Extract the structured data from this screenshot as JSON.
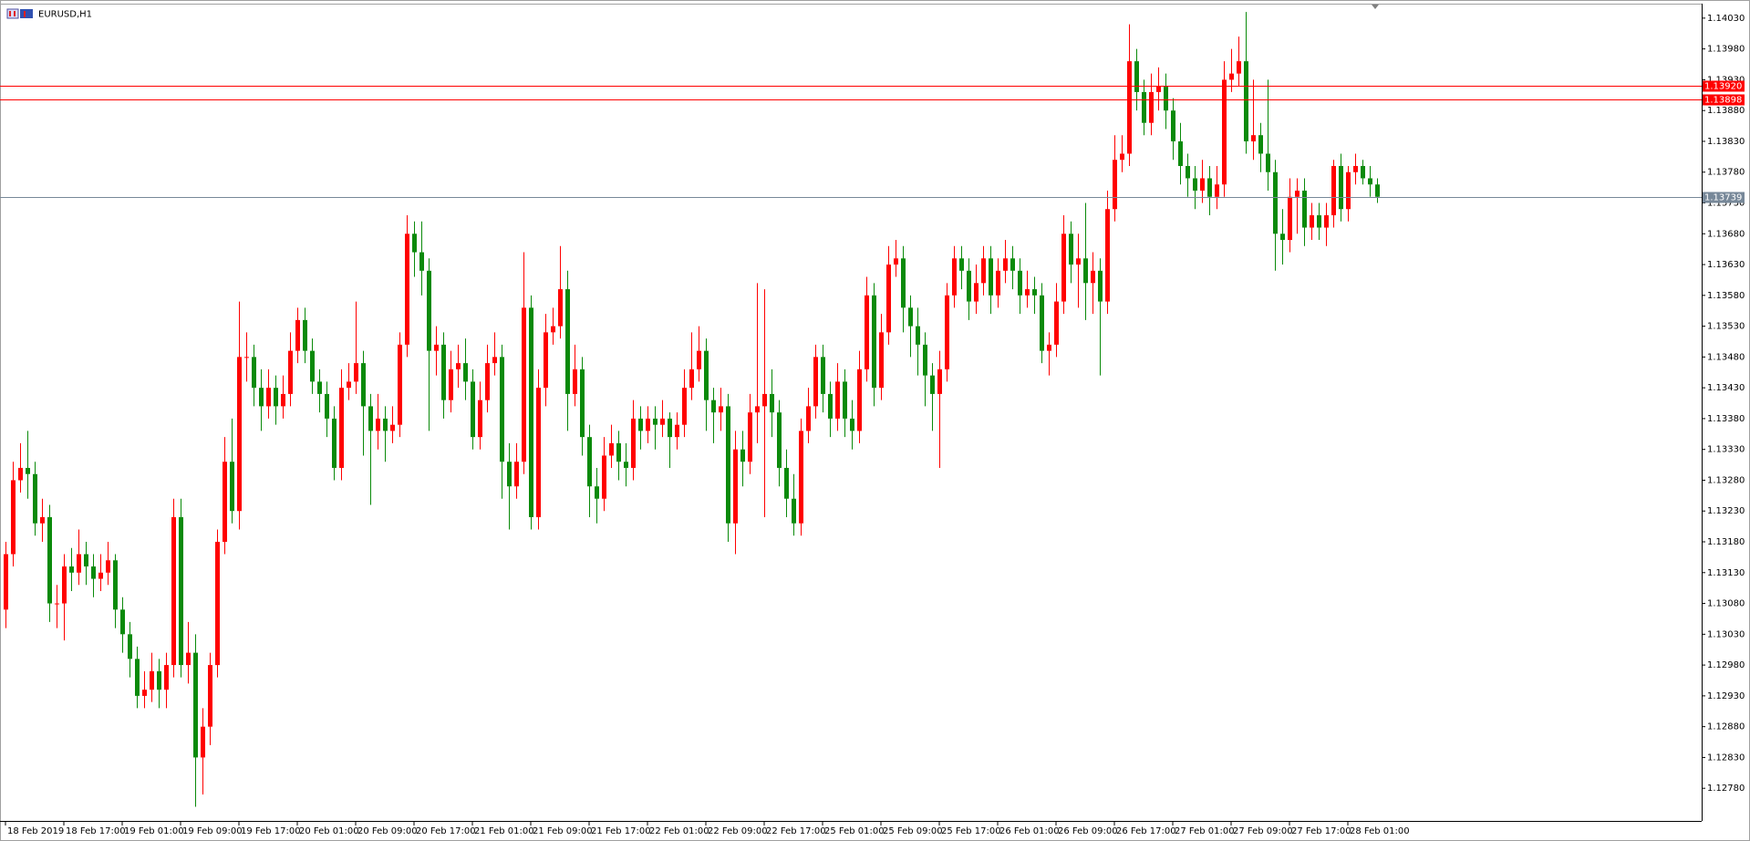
{
  "chart_data": {
    "type": "candlestick",
    "title": "EURUSD,H1",
    "up_color": "#ff0000",
    "down_color": "#0a8a0a",
    "ylim": [
      1.12727,
      1.14052
    ],
    "yticks": [
      {
        "value": 1.1278,
        "label": "1.12780"
      },
      {
        "value": 1.1283,
        "label": "1.12830"
      },
      {
        "value": 1.1288,
        "label": "1.12880"
      },
      {
        "value": 1.1293,
        "label": "1.12930"
      },
      {
        "value": 1.1298,
        "label": "1.12980"
      },
      {
        "value": 1.1303,
        "label": "1.13030"
      },
      {
        "value": 1.1308,
        "label": "1.13080"
      },
      {
        "value": 1.1313,
        "label": "1.13130"
      },
      {
        "value": 1.1318,
        "label": "1.13180"
      },
      {
        "value": 1.1323,
        "label": "1.13230"
      },
      {
        "value": 1.1328,
        "label": "1.13280"
      },
      {
        "value": 1.1333,
        "label": "1.13330"
      },
      {
        "value": 1.1338,
        "label": "1.13380"
      },
      {
        "value": 1.1343,
        "label": "1.13430"
      },
      {
        "value": 1.1348,
        "label": "1.13480"
      },
      {
        "value": 1.1353,
        "label": "1.13530"
      },
      {
        "value": 1.1358,
        "label": "1.13580"
      },
      {
        "value": 1.1363,
        "label": "1.13630"
      },
      {
        "value": 1.1368,
        "label": "1.13680"
      },
      {
        "value": 1.1373,
        "label": "1.13730"
      },
      {
        "value": 1.1378,
        "label": "1.13780"
      },
      {
        "value": 1.1383,
        "label": "1.13830"
      },
      {
        "value": 1.1388,
        "label": "1.13880"
      },
      {
        "value": 1.1393,
        "label": "1.13930"
      },
      {
        "value": 1.1398,
        "label": "1.13980"
      },
      {
        "value": 1.1403,
        "label": "1.14030"
      }
    ],
    "hlines": [
      {
        "value": 1.1392,
        "label": "1.13920",
        "color": "#ff0000"
      },
      {
        "value": 1.13898,
        "label": "1.13898",
        "color": "#ff0000"
      }
    ],
    "bid": {
      "value": 1.13739,
      "label": "1.13739",
      "color": "#778899"
    },
    "categories": [
      "18 Feb 2019",
      null,
      null,
      null,
      null,
      null,
      null,
      null,
      "18 Feb 17:00",
      null,
      null,
      null,
      null,
      null,
      null,
      null,
      "19 Feb 01:00",
      null,
      null,
      null,
      null,
      null,
      null,
      null,
      "19 Feb 09:00",
      null,
      null,
      null,
      null,
      null,
      null,
      null,
      "19 Feb 17:00",
      null,
      null,
      null,
      null,
      null,
      null,
      null,
      "20 Feb 01:00",
      null,
      null,
      null,
      null,
      null,
      null,
      null,
      "20 Feb 09:00",
      null,
      null,
      null,
      null,
      null,
      null,
      null,
      "20 Feb 17:00",
      null,
      null,
      null,
      null,
      null,
      null,
      null,
      "21 Feb 01:00",
      null,
      null,
      null,
      null,
      null,
      null,
      null,
      "21 Feb 09:00",
      null,
      null,
      null,
      null,
      null,
      null,
      null,
      "21 Feb 17:00",
      null,
      null,
      null,
      null,
      null,
      null,
      null,
      "22 Feb 01:00",
      null,
      null,
      null,
      null,
      null,
      null,
      null,
      "22 Feb 09:00",
      null,
      null,
      null,
      null,
      null,
      null,
      null,
      "22 Feb 17:00",
      null,
      null,
      null,
      null,
      null,
      null,
      null,
      "25 Feb 01:00",
      null,
      null,
      null,
      null,
      null,
      null,
      null,
      "25 Feb 09:00",
      null,
      null,
      null,
      null,
      null,
      null,
      null,
      "25 Feb 17:00",
      null,
      null,
      null,
      null,
      null,
      null,
      null,
      "26 Feb 01:00",
      null,
      null,
      null,
      null,
      null,
      null,
      null,
      "26 Feb 09:00",
      null,
      null,
      null,
      null,
      null,
      null,
      null,
      "26 Feb 17:00",
      null,
      null,
      null,
      null,
      null,
      null,
      null,
      "27 Feb 01:00",
      null,
      null,
      null,
      null,
      null,
      null,
      null,
      "27 Feb 09:00",
      null,
      null,
      null,
      null,
      null,
      null,
      null,
      "27 Feb 17:00",
      null,
      null,
      null,
      null,
      null,
      null,
      null,
      "28 Feb 01:00",
      null,
      null,
      null,
      null
    ],
    "ohlc": [
      [
        1.1307,
        1.1318,
        1.1304,
        1.1316
      ],
      [
        1.1316,
        1.1331,
        1.1314,
        1.1328
      ],
      [
        1.1328,
        1.1334,
        1.1326,
        1.133
      ],
      [
        1.133,
        1.1336,
        1.1325,
        1.1329
      ],
      [
        1.1329,
        1.1331,
        1.1319,
        1.1321
      ],
      [
        1.1321,
        1.1325,
        1.1318,
        1.1322
      ],
      [
        1.1322,
        1.1324,
        1.1305,
        1.1308
      ],
      [
        1.1308,
        1.1311,
        1.1304,
        1.1308
      ],
      [
        1.1308,
        1.1316,
        1.1302,
        1.1314
      ],
      [
        1.1314,
        1.1317,
        1.131,
        1.1313
      ],
      [
        1.1313,
        1.132,
        1.1311,
        1.1316
      ],
      [
        1.1316,
        1.1318,
        1.1311,
        1.1314
      ],
      [
        1.1314,
        1.1316,
        1.1309,
        1.1312
      ],
      [
        1.1312,
        1.1316,
        1.131,
        1.1313
      ],
      [
        1.1313,
        1.1318,
        1.1311,
        1.1315
      ],
      [
        1.1315,
        1.1316,
        1.1304,
        1.1307
      ],
      [
        1.1307,
        1.1309,
        1.13,
        1.1303
      ],
      [
        1.1303,
        1.1305,
        1.1296,
        1.1299
      ],
      [
        1.1299,
        1.1301,
        1.1291,
        1.1293
      ],
      [
        1.1293,
        1.1297,
        1.1291,
        1.1294
      ],
      [
        1.1294,
        1.13,
        1.1292,
        1.1297
      ],
      [
        1.1297,
        1.1299,
        1.1291,
        1.1294
      ],
      [
        1.1294,
        1.13,
        1.1291,
        1.1298
      ],
      [
        1.1298,
        1.1325,
        1.1296,
        1.1322
      ],
      [
        1.1322,
        1.1325,
        1.1296,
        1.1298
      ],
      [
        1.1298,
        1.1305,
        1.1295,
        1.13
      ],
      [
        1.13,
        1.1303,
        1.1275,
        1.1283
      ],
      [
        1.1283,
        1.1291,
        1.1277,
        1.1288
      ],
      [
        1.1288,
        1.13,
        1.1285,
        1.1298
      ],
      [
        1.1298,
        1.132,
        1.1296,
        1.1318
      ],
      [
        1.1318,
        1.1335,
        1.1316,
        1.1331
      ],
      [
        1.1331,
        1.1338,
        1.1321,
        1.1323
      ],
      [
        1.1323,
        1.1357,
        1.132,
        1.1348
      ],
      [
        1.1348,
        1.1352,
        1.1344,
        1.1348
      ],
      [
        1.1348,
        1.135,
        1.134,
        1.1343
      ],
      [
        1.1343,
        1.1346,
        1.1336,
        1.134
      ],
      [
        1.134,
        1.1346,
        1.1338,
        1.1343
      ],
      [
        1.1343,
        1.1345,
        1.1337,
        1.134
      ],
      [
        1.134,
        1.1345,
        1.1338,
        1.1342
      ],
      [
        1.1342,
        1.1352,
        1.134,
        1.1349
      ],
      [
        1.1349,
        1.1356,
        1.1347,
        1.1354
      ],
      [
        1.1354,
        1.1356,
        1.1347,
        1.1349
      ],
      [
        1.1349,
        1.1351,
        1.1342,
        1.1344
      ],
      [
        1.1344,
        1.1346,
        1.1339,
        1.1342
      ],
      [
        1.1342,
        1.1344,
        1.1335,
        1.1338
      ],
      [
        1.1338,
        1.134,
        1.1328,
        1.133
      ],
      [
        1.133,
        1.1346,
        1.1328,
        1.1343
      ],
      [
        1.1343,
        1.1347,
        1.1341,
        1.1344
      ],
      [
        1.1344,
        1.1357,
        1.1342,
        1.1347
      ],
      [
        1.1347,
        1.1349,
        1.1332,
        1.134
      ],
      [
        1.134,
        1.1342,
        1.1324,
        1.1336
      ],
      [
        1.1336,
        1.1342,
        1.1333,
        1.1338
      ],
      [
        1.1338,
        1.134,
        1.1331,
        1.1336
      ],
      [
        1.1336,
        1.134,
        1.1334,
        1.1337
      ],
      [
        1.1337,
        1.1352,
        1.1335,
        1.135
      ],
      [
        1.135,
        1.1371,
        1.1348,
        1.1368
      ],
      [
        1.1368,
        1.137,
        1.1361,
        1.1365
      ],
      [
        1.1365,
        1.137,
        1.1358,
        1.1362
      ],
      [
        1.1362,
        1.1364,
        1.1336,
        1.1349
      ],
      [
        1.1349,
        1.1353,
        1.1345,
        1.135
      ],
      [
        1.135,
        1.1352,
        1.1338,
        1.1341
      ],
      [
        1.1341,
        1.1349,
        1.1339,
        1.1346
      ],
      [
        1.1346,
        1.135,
        1.1343,
        1.1347
      ],
      [
        1.1347,
        1.1351,
        1.1341,
        1.1344
      ],
      [
        1.1344,
        1.1346,
        1.1333,
        1.1335
      ],
      [
        1.1335,
        1.1344,
        1.1333,
        1.1341
      ],
      [
        1.1341,
        1.135,
        1.1339,
        1.1347
      ],
      [
        1.1347,
        1.1352,
        1.1345,
        1.1348
      ],
      [
        1.1348,
        1.135,
        1.1325,
        1.1331
      ],
      [
        1.1331,
        1.1334,
        1.132,
        1.1327
      ],
      [
        1.1327,
        1.1334,
        1.1325,
        1.1331
      ],
      [
        1.1331,
        1.1365,
        1.1329,
        1.1356
      ],
      [
        1.1356,
        1.1358,
        1.132,
        1.1322
      ],
      [
        1.1322,
        1.1346,
        1.132,
        1.1343
      ],
      [
        1.1343,
        1.1355,
        1.134,
        1.1352
      ],
      [
        1.1352,
        1.1356,
        1.135,
        1.1353
      ],
      [
        1.1353,
        1.1366,
        1.1351,
        1.1359
      ],
      [
        1.1359,
        1.1362,
        1.1336,
        1.1342
      ],
      [
        1.1342,
        1.135,
        1.134,
        1.1346
      ],
      [
        1.1346,
        1.1348,
        1.1332,
        1.1335
      ],
      [
        1.1335,
        1.1337,
        1.1322,
        1.1327
      ],
      [
        1.1327,
        1.133,
        1.1321,
        1.1325
      ],
      [
        1.1325,
        1.1335,
        1.1323,
        1.1332
      ],
      [
        1.1332,
        1.1337,
        1.133,
        1.1334
      ],
      [
        1.1334,
        1.1336,
        1.1328,
        1.1331
      ],
      [
        1.1331,
        1.1334,
        1.1327,
        1.133
      ],
      [
        1.133,
        1.1341,
        1.1328,
        1.1338
      ],
      [
        1.1338,
        1.134,
        1.1333,
        1.1336
      ],
      [
        1.1336,
        1.134,
        1.1334,
        1.1338
      ],
      [
        1.1338,
        1.134,
        1.1333,
        1.1337
      ],
      [
        1.1337,
        1.1341,
        1.1335,
        1.1338
      ],
      [
        1.1338,
        1.1339,
        1.133,
        1.1335
      ],
      [
        1.1335,
        1.1339,
        1.1333,
        1.1337
      ],
      [
        1.1337,
        1.1346,
        1.1335,
        1.1343
      ],
      [
        1.1343,
        1.1352,
        1.1341,
        1.1346
      ],
      [
        1.1346,
        1.1353,
        1.1344,
        1.1349
      ],
      [
        1.1349,
        1.1351,
        1.1336,
        1.1341
      ],
      [
        1.1341,
        1.1343,
        1.1334,
        1.1339
      ],
      [
        1.1339,
        1.1343,
        1.1336,
        1.134
      ],
      [
        1.134,
        1.1342,
        1.1318,
        1.1321
      ],
      [
        1.1321,
        1.1336,
        1.1316,
        1.1333
      ],
      [
        1.1333,
        1.1336,
        1.1327,
        1.1331
      ],
      [
        1.1331,
        1.1342,
        1.1329,
        1.1339
      ],
      [
        1.1339,
        1.136,
        1.1334,
        1.134
      ],
      [
        1.134,
        1.1359,
        1.1322,
        1.1342
      ],
      [
        1.1342,
        1.1346,
        1.1335,
        1.1339
      ],
      [
        1.1339,
        1.1341,
        1.1327,
        1.133
      ],
      [
        1.133,
        1.1333,
        1.1322,
        1.1325
      ],
      [
        1.1325,
        1.1329,
        1.1319,
        1.1321
      ],
      [
        1.1321,
        1.1338,
        1.1319,
        1.1336
      ],
      [
        1.1336,
        1.1343,
        1.1334,
        1.134
      ],
      [
        1.134,
        1.135,
        1.1338,
        1.1348
      ],
      [
        1.1348,
        1.135,
        1.1339,
        1.1342
      ],
      [
        1.1342,
        1.1344,
        1.1335,
        1.1338
      ],
      [
        1.1338,
        1.1347,
        1.1336,
        1.1344
      ],
      [
        1.1344,
        1.1346,
        1.1335,
        1.1338
      ],
      [
        1.1338,
        1.1341,
        1.1333,
        1.1336
      ],
      [
        1.1336,
        1.1349,
        1.1334,
        1.1346
      ],
      [
        1.1346,
        1.1361,
        1.1344,
        1.1358
      ],
      [
        1.1358,
        1.136,
        1.134,
        1.1343
      ],
      [
        1.1343,
        1.1355,
        1.1341,
        1.1352
      ],
      [
        1.1352,
        1.1366,
        1.135,
        1.1363
      ],
      [
        1.1363,
        1.1367,
        1.1361,
        1.1364
      ],
      [
        1.1364,
        1.1366,
        1.1352,
        1.1356
      ],
      [
        1.1356,
        1.1358,
        1.1348,
        1.1353
      ],
      [
        1.1353,
        1.1356,
        1.1345,
        1.135
      ],
      [
        1.135,
        1.1352,
        1.134,
        1.1345
      ],
      [
        1.1345,
        1.1347,
        1.1336,
        1.1342
      ],
      [
        1.1342,
        1.1349,
        1.133,
        1.1346
      ],
      [
        1.1346,
        1.136,
        1.1344,
        1.1358
      ],
      [
        1.1358,
        1.1366,
        1.1356,
        1.1364
      ],
      [
        1.1364,
        1.1366,
        1.1359,
        1.1362
      ],
      [
        1.1362,
        1.1364,
        1.1354,
        1.1357
      ],
      [
        1.1357,
        1.1363,
        1.1355,
        1.136
      ],
      [
        1.136,
        1.1366,
        1.1358,
        1.1364
      ],
      [
        1.1364,
        1.1366,
        1.1355,
        1.1358
      ],
      [
        1.1358,
        1.1364,
        1.1356,
        1.1362
      ],
      [
        1.1362,
        1.1367,
        1.136,
        1.1364
      ],
      [
        1.1364,
        1.1366,
        1.1359,
        1.1362
      ],
      [
        1.1362,
        1.1364,
        1.1355,
        1.1358
      ],
      [
        1.1358,
        1.1362,
        1.1356,
        1.1359
      ],
      [
        1.1359,
        1.1361,
        1.1355,
        1.1358
      ],
      [
        1.1358,
        1.136,
        1.1347,
        1.1349
      ],
      [
        1.1349,
        1.1352,
        1.1345,
        1.135
      ],
      [
        1.135,
        1.136,
        1.1348,
        1.1357
      ],
      [
        1.1357,
        1.1371,
        1.1355,
        1.1368
      ],
      [
        1.1368,
        1.137,
        1.136,
        1.1363
      ],
      [
        1.1363,
        1.1368,
        1.1356,
        1.1364
      ],
      [
        1.1364,
        1.1373,
        1.1354,
        1.136
      ],
      [
        1.136,
        1.1365,
        1.1355,
        1.1362
      ],
      [
        1.1362,
        1.1364,
        1.1345,
        1.1357
      ],
      [
        1.1357,
        1.1375,
        1.1355,
        1.1372
      ],
      [
        1.1372,
        1.1384,
        1.137,
        1.138
      ],
      [
        1.138,
        1.1384,
        1.1378,
        1.1381
      ],
      [
        1.1381,
        1.1402,
        1.1379,
        1.1396
      ],
      [
        1.1396,
        1.1398,
        1.1388,
        1.1391
      ],
      [
        1.1391,
        1.1393,
        1.1384,
        1.1386
      ],
      [
        1.1386,
        1.1394,
        1.1384,
        1.1391
      ],
      [
        1.1391,
        1.1395,
        1.1388,
        1.1392
      ],
      [
        1.1392,
        1.1394,
        1.1385,
        1.1388
      ],
      [
        1.1388,
        1.139,
        1.138,
        1.1383
      ],
      [
        1.1383,
        1.1386,
        1.1376,
        1.1379
      ],
      [
        1.1379,
        1.1381,
        1.1374,
        1.1377
      ],
      [
        1.1377,
        1.1379,
        1.1372,
        1.1375
      ],
      [
        1.1375,
        1.138,
        1.1373,
        1.1377
      ],
      [
        1.1377,
        1.1379,
        1.1371,
        1.1374
      ],
      [
        1.1374,
        1.1379,
        1.1372,
        1.1376
      ],
      [
        1.1376,
        1.1396,
        1.1374,
        1.1393
      ],
      [
        1.1393,
        1.1398,
        1.1391,
        1.1394
      ],
      [
        1.1394,
        1.14,
        1.1392,
        1.1396
      ],
      [
        1.1396,
        1.1404,
        1.1381,
        1.1383
      ],
      [
        1.1383,
        1.1393,
        1.138,
        1.1384
      ],
      [
        1.1384,
        1.1386,
        1.1378,
        1.1381
      ],
      [
        1.1381,
        1.1393,
        1.1375,
        1.1378
      ],
      [
        1.1378,
        1.138,
        1.1362,
        1.1368
      ],
      [
        1.1368,
        1.1372,
        1.1363,
        1.1367
      ],
      [
        1.1367,
        1.1377,
        1.1365,
        1.1374
      ],
      [
        1.1374,
        1.1377,
        1.1368,
        1.1375
      ],
      [
        1.1375,
        1.1377,
        1.1366,
        1.1369
      ],
      [
        1.1369,
        1.1373,
        1.1367,
        1.1371
      ],
      [
        1.1371,
        1.1373,
        1.1367,
        1.1369
      ],
      [
        1.1369,
        1.1373,
        1.1366,
        1.1371
      ],
      [
        1.1371,
        1.138,
        1.1369,
        1.1379
      ],
      [
        1.1379,
        1.1381,
        1.137,
        1.1372
      ],
      [
        1.1372,
        1.1379,
        1.137,
        1.1378
      ],
      [
        1.1378,
        1.1381,
        1.1376,
        1.1379
      ],
      [
        1.1379,
        1.138,
        1.1376,
        1.1377
      ],
      [
        1.1377,
        1.1379,
        1.1374,
        1.1376
      ],
      [
        1.1376,
        1.1377,
        1.1373,
        1.1374
      ]
    ]
  }
}
